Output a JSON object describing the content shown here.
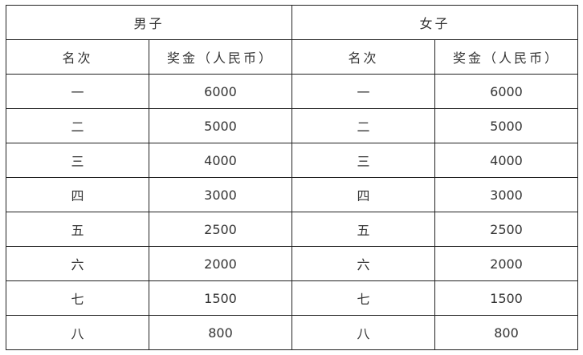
{
  "groups": [
    {
      "title": "男子",
      "col_rank": "名次",
      "col_prize": "奖金（人民币）",
      "rows": [
        [
          "一",
          "6000"
        ],
        [
          "二",
          "5000"
        ],
        [
          "三",
          "4000"
        ],
        [
          "四",
          "3000"
        ],
        [
          "五",
          "2500"
        ],
        [
          "六",
          "2000"
        ],
        [
          "七",
          "1500"
        ],
        [
          "八",
          "800"
        ]
      ]
    },
    {
      "title": "女子",
      "col_rank": "名次",
      "col_prize": "奖金（人民币）",
      "rows": [
        [
          "一",
          "6000"
        ],
        [
          "二",
          "5000"
        ],
        [
          "三",
          "4000"
        ],
        [
          "四",
          "3000"
        ],
        [
          "五",
          "2500"
        ],
        [
          "六",
          "2000"
        ],
        [
          "七",
          "1500"
        ],
        [
          "八",
          "800"
        ]
      ]
    }
  ]
}
